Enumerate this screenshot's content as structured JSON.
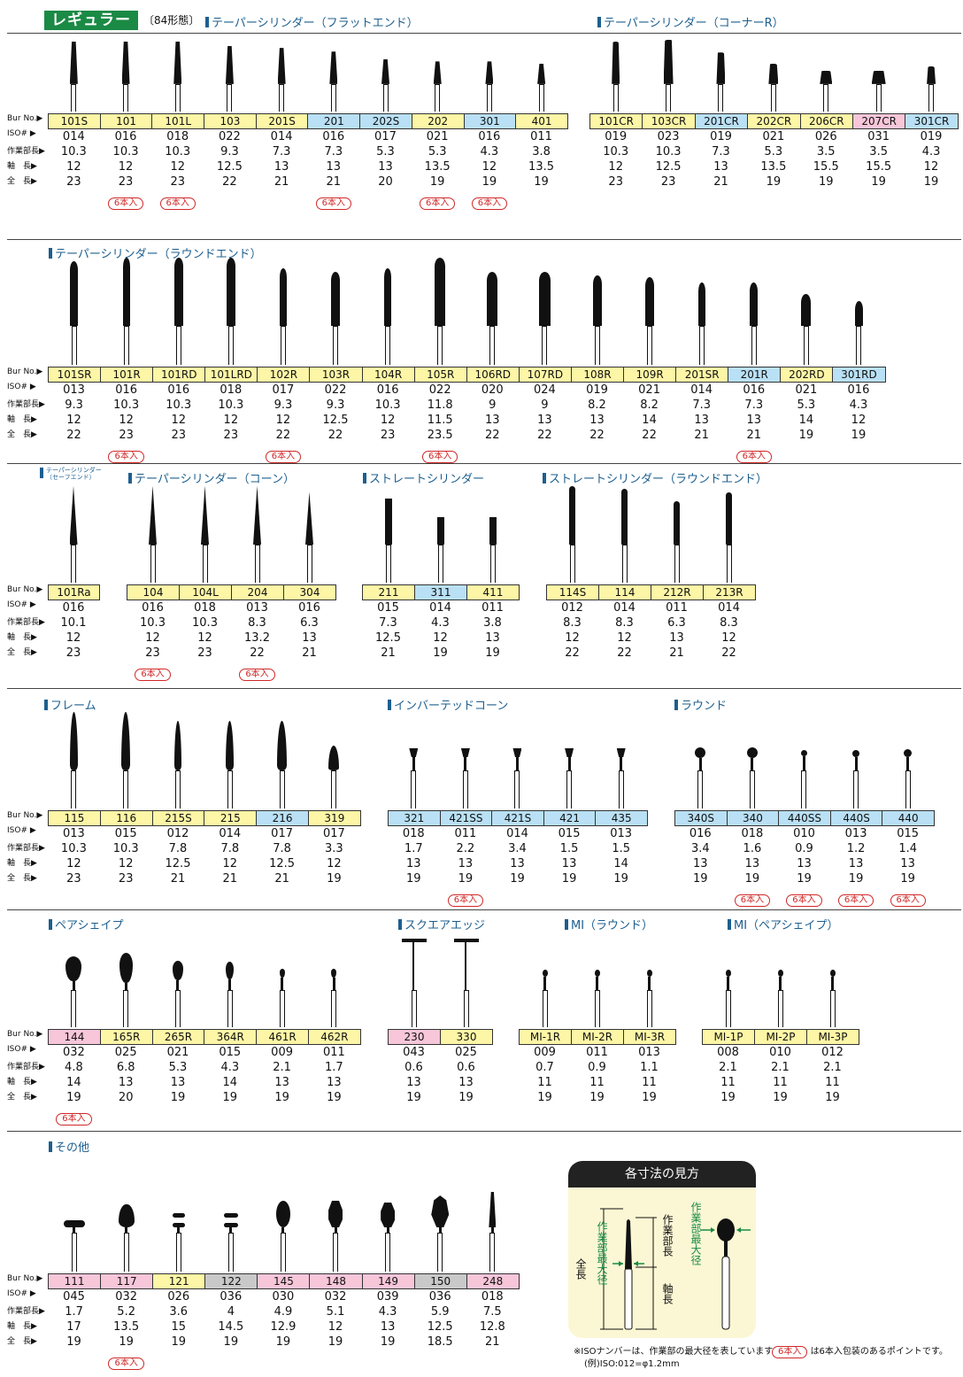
{
  "header": {
    "badge": "レギュラー",
    "forms": "〔84形態〕"
  },
  "row_labels": {
    "bur": "Bur No.▶",
    "iso": "ISO#  ▶",
    "work": "作業部長▶",
    "shaft": "軸　長▶",
    "total": "全　長▶"
  },
  "sections": {
    "s1a": {
      "title": "テーパーシリンダー（フラットエンド）",
      "items": [
        {
          "bur": "101S",
          "iso": "014",
          "work": "10.3",
          "shaft": "12",
          "total": "23",
          "c": "y",
          "six": ""
        },
        {
          "bur": "101",
          "iso": "016",
          "work": "10.3",
          "shaft": "12",
          "total": "23",
          "c": "y",
          "six": "6本入"
        },
        {
          "bur": "101L",
          "iso": "018",
          "work": "10.3",
          "shaft": "12",
          "total": "23",
          "c": "y",
          "six": "6本入"
        },
        {
          "bur": "103",
          "iso": "022",
          "work": "9.3",
          "shaft": "12.5",
          "total": "22",
          "c": "y",
          "six": ""
        },
        {
          "bur": "201S",
          "iso": "014",
          "work": "7.3",
          "shaft": "13",
          "total": "21",
          "c": "y",
          "six": ""
        },
        {
          "bur": "201",
          "iso": "016",
          "work": "7.3",
          "shaft": "13",
          "total": "21",
          "c": "b",
          "six": "6本入"
        },
        {
          "bur": "202S",
          "iso": "017",
          "work": "5.3",
          "shaft": "13",
          "total": "20",
          "c": "b",
          "six": ""
        },
        {
          "bur": "202",
          "iso": "021",
          "work": "5.3",
          "shaft": "13.5",
          "total": "19",
          "c": "y",
          "six": "6本入"
        },
        {
          "bur": "301",
          "iso": "016",
          "work": "4.3",
          "shaft": "12",
          "total": "19",
          "c": "b",
          "six": "6本入"
        },
        {
          "bur": "401",
          "iso": "011",
          "work": "3.8",
          "shaft": "13.5",
          "total": "19",
          "c": "y",
          "six": ""
        }
      ]
    },
    "s1b": {
      "title": "テーパーシリンダー（コーナーR）",
      "items": [
        {
          "bur": "101CR",
          "iso": "019",
          "work": "10.3",
          "shaft": "12",
          "total": "23",
          "c": "y",
          "six": ""
        },
        {
          "bur": "103CR",
          "iso": "023",
          "work": "10.3",
          "shaft": "12.5",
          "total": "23",
          "c": "y",
          "six": ""
        },
        {
          "bur": "201CR",
          "iso": "019",
          "work": "7.3",
          "shaft": "13",
          "total": "21",
          "c": "b",
          "six": ""
        },
        {
          "bur": "202CR",
          "iso": "021",
          "work": "5.3",
          "shaft": "13.5",
          "total": "19",
          "c": "y",
          "six": ""
        },
        {
          "bur": "206CR",
          "iso": "026",
          "work": "3.5",
          "shaft": "15.5",
          "total": "19",
          "c": "y",
          "six": ""
        },
        {
          "bur": "207CR",
          "iso": "031",
          "work": "3.5",
          "shaft": "15.5",
          "total": "19",
          "c": "p",
          "six": ""
        },
        {
          "bur": "301CR",
          "iso": "019",
          "work": "4.3",
          "shaft": "12",
          "total": "19",
          "c": "b",
          "six": ""
        }
      ]
    },
    "s2": {
      "title": "テーパーシリンダー（ラウンドエンド）",
      "items": [
        {
          "bur": "101SR",
          "iso": "013",
          "work": "9.3",
          "shaft": "12",
          "total": "22",
          "c": "y",
          "six": ""
        },
        {
          "bur": "101R",
          "iso": "016",
          "work": "10.3",
          "shaft": "12",
          "total": "23",
          "c": "y",
          "six": "6本入"
        },
        {
          "bur": "101RD",
          "iso": "016",
          "work": "10.3",
          "shaft": "12",
          "total": "23",
          "c": "y",
          "six": ""
        },
        {
          "bur": "101LRD",
          "iso": "018",
          "work": "10.3",
          "shaft": "12",
          "total": "23",
          "c": "y",
          "six": ""
        },
        {
          "bur": "102R",
          "iso": "017",
          "work": "9.3",
          "shaft": "12",
          "total": "22",
          "c": "y",
          "six": "6本入"
        },
        {
          "bur": "103R",
          "iso": "022",
          "work": "9.3",
          "shaft": "12.5",
          "total": "22",
          "c": "y",
          "six": ""
        },
        {
          "bur": "104R",
          "iso": "016",
          "work": "10.3",
          "shaft": "12",
          "total": "23",
          "c": "y",
          "six": ""
        },
        {
          "bur": "105R",
          "iso": "022",
          "work": "11.8",
          "shaft": "11.5",
          "total": "23.5",
          "c": "y",
          "six": "6本入"
        },
        {
          "bur": "106RD",
          "iso": "020",
          "work": "9",
          "shaft": "13",
          "total": "22",
          "c": "y",
          "six": ""
        },
        {
          "bur": "107RD",
          "iso": "024",
          "work": "9",
          "shaft": "13",
          "total": "22",
          "c": "y",
          "six": ""
        },
        {
          "bur": "108R",
          "iso": "019",
          "work": "8.2",
          "shaft": "13",
          "total": "22",
          "c": "y",
          "six": ""
        },
        {
          "bur": "109R",
          "iso": "021",
          "work": "8.2",
          "shaft": "14",
          "total": "22",
          "c": "y",
          "six": ""
        },
        {
          "bur": "201SR",
          "iso": "014",
          "work": "7.3",
          "shaft": "13",
          "total": "21",
          "c": "y",
          "six": ""
        },
        {
          "bur": "201R",
          "iso": "016",
          "work": "7.3",
          "shaft": "13",
          "total": "21",
          "c": "b",
          "six": "6本入"
        },
        {
          "bur": "202RD",
          "iso": "021",
          "work": "5.3",
          "shaft": "14",
          "total": "19",
          "c": "y",
          "six": ""
        },
        {
          "bur": "301RD",
          "iso": "016",
          "work": "4.3",
          "shaft": "12",
          "total": "19",
          "c": "b",
          "six": ""
        }
      ]
    },
    "s3a": {
      "title": "テーパーシリンダー\n（セーフエンド）",
      "items": [
        {
          "bur": "101Ra",
          "iso": "016",
          "work": "10.1",
          "shaft": "12",
          "total": "23",
          "c": "y",
          "six": ""
        }
      ]
    },
    "s3b": {
      "title": "テーパーシリンダー（コーン）",
      "items": [
        {
          "bur": "104",
          "iso": "016",
          "work": "10.3",
          "shaft": "12",
          "total": "23",
          "c": "y",
          "six": "6本入"
        },
        {
          "bur": "104L",
          "iso": "018",
          "work": "10.3",
          "shaft": "12",
          "total": "23",
          "c": "y",
          "six": ""
        },
        {
          "bur": "204",
          "iso": "013",
          "work": "8.3",
          "shaft": "13.2",
          "total": "22",
          "c": "y",
          "six": "6本入"
        },
        {
          "bur": "304",
          "iso": "016",
          "work": "6.3",
          "shaft": "13",
          "total": "21",
          "c": "y",
          "six": ""
        }
      ]
    },
    "s3c": {
      "title": "ストレートシリンダー",
      "items": [
        {
          "bur": "211",
          "iso": "015",
          "work": "7.3",
          "shaft": "12.5",
          "total": "21",
          "c": "y",
          "six": ""
        },
        {
          "bur": "311",
          "iso": "014",
          "work": "4.3",
          "shaft": "12",
          "total": "19",
          "c": "b",
          "six": ""
        },
        {
          "bur": "411",
          "iso": "011",
          "work": "3.8",
          "shaft": "13",
          "total": "19",
          "c": "y",
          "six": ""
        }
      ]
    },
    "s3d": {
      "title": "ストレートシリンダー（ラウンドエンド）",
      "items": [
        {
          "bur": "114S",
          "iso": "012",
          "work": "8.3",
          "shaft": "12",
          "total": "22",
          "c": "y",
          "six": ""
        },
        {
          "bur": "114",
          "iso": "014",
          "work": "8.3",
          "shaft": "12",
          "total": "22",
          "c": "y",
          "six": ""
        },
        {
          "bur": "212R",
          "iso": "011",
          "work": "6.3",
          "shaft": "13",
          "total": "21",
          "c": "y",
          "six": ""
        },
        {
          "bur": "213R",
          "iso": "014",
          "work": "8.3",
          "shaft": "12",
          "total": "22",
          "c": "y",
          "six": ""
        }
      ]
    },
    "s4a": {
      "title": "フレーム",
      "items": [
        {
          "bur": "115",
          "iso": "013",
          "work": "10.3",
          "shaft": "12",
          "total": "23",
          "c": "y",
          "six": ""
        },
        {
          "bur": "116",
          "iso": "015",
          "work": "10.3",
          "shaft": "12",
          "total": "23",
          "c": "y",
          "six": ""
        },
        {
          "bur": "215S",
          "iso": "012",
          "work": "7.8",
          "shaft": "12.5",
          "total": "21",
          "c": "y",
          "six": ""
        },
        {
          "bur": "215",
          "iso": "014",
          "work": "7.8",
          "shaft": "12",
          "total": "21",
          "c": "y",
          "six": ""
        },
        {
          "bur": "216",
          "iso": "017",
          "work": "7.8",
          "shaft": "12.5",
          "total": "21",
          "c": "b",
          "six": ""
        },
        {
          "bur": "319",
          "iso": "017",
          "work": "3.3",
          "shaft": "12",
          "total": "19",
          "c": "y",
          "six": ""
        }
      ]
    },
    "s4b": {
      "title": "インバーテッドコーン",
      "items": [
        {
          "bur": "321",
          "iso": "018",
          "work": "1.7",
          "shaft": "13",
          "total": "19",
          "c": "b",
          "six": ""
        },
        {
          "bur": "421SS",
          "iso": "011",
          "work": "2.2",
          "shaft": "13",
          "total": "19",
          "c": "b",
          "six": "6本入"
        },
        {
          "bur": "421S",
          "iso": "014",
          "work": "3.4",
          "shaft": "13",
          "total": "19",
          "c": "b",
          "six": ""
        },
        {
          "bur": "421",
          "iso": "015",
          "work": "1.5",
          "shaft": "13",
          "total": "19",
          "c": "b",
          "six": ""
        },
        {
          "bur": "435",
          "iso": "013",
          "work": "1.5",
          "shaft": "14",
          "total": "19",
          "c": "b",
          "six": ""
        }
      ]
    },
    "s4c": {
      "title": "ラウンド",
      "items": [
        {
          "bur": "340S",
          "iso": "016",
          "work": "3.4",
          "shaft": "13",
          "total": "19",
          "c": "b",
          "six": ""
        },
        {
          "bur": "340",
          "iso": "018",
          "work": "1.6",
          "shaft": "13",
          "total": "19",
          "c": "b",
          "six": "6本入"
        },
        {
          "bur": "440SS",
          "iso": "010",
          "work": "0.9",
          "shaft": "13",
          "total": "19",
          "c": "b",
          "six": "6本入"
        },
        {
          "bur": "440S",
          "iso": "013",
          "work": "1.2",
          "shaft": "13",
          "total": "19",
          "c": "b",
          "six": "6本入"
        },
        {
          "bur": "440",
          "iso": "015",
          "work": "1.4",
          "shaft": "13",
          "total": "19",
          "c": "b",
          "six": "6本入"
        }
      ]
    },
    "s5a": {
      "title": "ペアシェイプ",
      "items": [
        {
          "bur": "144",
          "iso": "032",
          "work": "4.8",
          "shaft": "14",
          "total": "19",
          "c": "p",
          "six": "6本入"
        },
        {
          "bur": "165R",
          "iso": "025",
          "work": "6.8",
          "shaft": "13",
          "total": "20",
          "c": "y",
          "six": ""
        },
        {
          "bur": "265R",
          "iso": "021",
          "work": "5.3",
          "shaft": "13",
          "total": "19",
          "c": "y",
          "six": ""
        },
        {
          "bur": "364R",
          "iso": "015",
          "work": "4.3",
          "shaft": "14",
          "total": "19",
          "c": "y",
          "six": ""
        },
        {
          "bur": "461R",
          "iso": "009",
          "work": "2.1",
          "shaft": "13",
          "total": "19",
          "c": "y",
          "six": ""
        },
        {
          "bur": "462R",
          "iso": "011",
          "work": "1.7",
          "shaft": "13",
          "total": "19",
          "c": "y",
          "six": ""
        }
      ]
    },
    "s5b": {
      "title": "スクエアエッジ",
      "items": [
        {
          "bur": "230",
          "iso": "043",
          "work": "0.6",
          "shaft": "13",
          "total": "19",
          "c": "p",
          "six": ""
        },
        {
          "bur": "330",
          "iso": "025",
          "work": "0.6",
          "shaft": "13",
          "total": "19",
          "c": "y",
          "six": ""
        }
      ]
    },
    "s5c": {
      "title": "MI（ラウンド）",
      "items": [
        {
          "bur": "MI-1R",
          "iso": "009",
          "work": "0.7",
          "shaft": "11",
          "total": "19",
          "c": "y",
          "six": ""
        },
        {
          "bur": "MI-2R",
          "iso": "011",
          "work": "0.9",
          "shaft": "11",
          "total": "19",
          "c": "y",
          "six": ""
        },
        {
          "bur": "MI-3R",
          "iso": "013",
          "work": "1.1",
          "shaft": "11",
          "total": "19",
          "c": "y",
          "six": ""
        }
      ]
    },
    "s5d": {
      "title": "MI（ペアシェイプ）",
      "items": [
        {
          "bur": "MI-1P",
          "iso": "008",
          "work": "2.1",
          "shaft": "11",
          "total": "19",
          "c": "y",
          "six": ""
        },
        {
          "bur": "MI-2P",
          "iso": "010",
          "work": "2.1",
          "shaft": "11",
          "total": "19",
          "c": "y",
          "six": ""
        },
        {
          "bur": "MI-3P",
          "iso": "012",
          "work": "2.1",
          "shaft": "11",
          "total": "19",
          "c": "y",
          "six": ""
        }
      ]
    },
    "s6": {
      "title": "その他",
      "items": [
        {
          "bur": "111",
          "iso": "045",
          "work": "1.7",
          "shaft": "17",
          "total": "19",
          "c": "p",
          "six": ""
        },
        {
          "bur": "117",
          "iso": "032",
          "work": "5.2",
          "shaft": "13.5",
          "total": "19",
          "c": "p",
          "six": "6本入"
        },
        {
          "bur": "121",
          "iso": "026",
          "work": "3.6",
          "shaft": "15",
          "total": "19",
          "c": "y",
          "six": ""
        },
        {
          "bur": "122",
          "iso": "036",
          "work": "4",
          "shaft": "14.5",
          "total": "19",
          "c": "g",
          "six": ""
        },
        {
          "bur": "145",
          "iso": "030",
          "work": "4.9",
          "shaft": "12.9",
          "total": "19",
          "c": "p",
          "six": ""
        },
        {
          "bur": "148",
          "iso": "032",
          "work": "5.1",
          "shaft": "12",
          "total": "19",
          "c": "p",
          "six": ""
        },
        {
          "bur": "149",
          "iso": "039",
          "work": "4.3",
          "shaft": "13",
          "total": "19",
          "c": "p",
          "six": ""
        },
        {
          "bur": "150",
          "iso": "036",
          "work": "5.9",
          "shaft": "12.5",
          "total": "18.5",
          "c": "g",
          "six": ""
        },
        {
          "bur": "248",
          "iso": "018",
          "work": "7.5",
          "shaft": "12.8",
          "total": "21",
          "c": "p",
          "six": ""
        }
      ]
    }
  },
  "guide": {
    "title": "各寸法の見方",
    "total_len": "全長",
    "work_len": "作業部長",
    "shaft_len": "軸長",
    "max_dia_a": "作業部最大径",
    "max_dia_b": "作業部最大径"
  },
  "notes": {
    "iso_note": "※ISOナンバーは、作業部の最大径を表しています",
    "iso_example": "(例)ISO:012=φ1.2mm",
    "six_badge": "6本入",
    "six_note": "は6本入包装のあるポイントです。"
  },
  "colors": {
    "yellow": "#fdf6a6",
    "blue": "#b9e0f5",
    "pink": "#f7c6d9",
    "gray": "#c9c9c9",
    "green": "#1a8a45",
    "title_blue": "#1d5f8f",
    "red": "#d02828"
  }
}
